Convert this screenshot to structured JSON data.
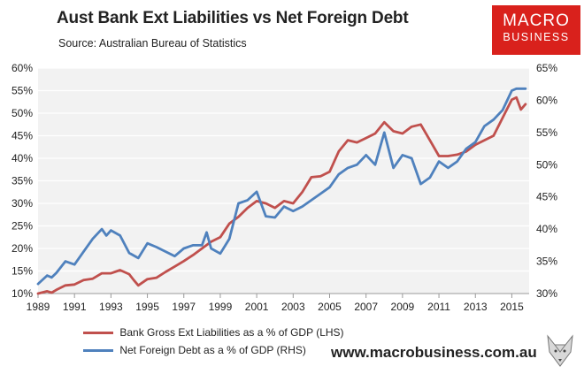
{
  "title": "Aust Bank Ext Liabilities vs Net Foreign Debt",
  "source": "Source:  Australian Bureau of Statistics",
  "logo": {
    "line1": "MACRO",
    "line2": "BUSINESS"
  },
  "website": "www.macrobusiness.com.au",
  "colors": {
    "bank": "#c0504d",
    "nfd": "#4f81bd",
    "plot_bg": "#f2f2f2",
    "logo_red": "#d9211c"
  },
  "chart_data": {
    "type": "line",
    "title": "Aust Bank Ext Liabilities vs Net Foreign Debt",
    "grid": "horizontal",
    "legend_position": "bottom-left",
    "x_ticks": [
      "1989",
      "1991",
      "1993",
      "1995",
      "1997",
      "1999",
      "2001",
      "2003",
      "2005",
      "2007",
      "2009",
      "2011",
      "2013",
      "2015"
    ],
    "left_axis": {
      "range": [
        10,
        60
      ],
      "ticks": [
        "10%",
        "15%",
        "20%",
        "25%",
        "30%",
        "35%",
        "40%",
        "45%",
        "50%",
        "55%",
        "60%"
      ]
    },
    "right_axis": {
      "range": [
        30,
        65
      ],
      "ticks": [
        "30%",
        "35%",
        "40%",
        "45%",
        "50%",
        "55%",
        "60%",
        "65%"
      ]
    },
    "series": [
      {
        "name": "Bank Gross Ext Liabilities as a % of GDP (LHS)",
        "axis": "left",
        "color": "#c0504d",
        "points": [
          [
            1989.0,
            10.0
          ],
          [
            1989.5,
            10.5
          ],
          [
            1989.75,
            10.2
          ],
          [
            1990.0,
            10.8
          ],
          [
            1990.5,
            11.8
          ],
          [
            1991.0,
            12.0
          ],
          [
            1991.5,
            13.0
          ],
          [
            1992.0,
            13.3
          ],
          [
            1992.5,
            14.5
          ],
          [
            1993.0,
            14.5
          ],
          [
            1993.5,
            15.2
          ],
          [
            1994.0,
            14.3
          ],
          [
            1994.25,
            13.0
          ],
          [
            1994.5,
            11.8
          ],
          [
            1995.0,
            13.2
          ],
          [
            1995.5,
            13.5
          ],
          [
            1996.0,
            14.8
          ],
          [
            1996.5,
            16.0
          ],
          [
            1997.0,
            17.2
          ],
          [
            1997.5,
            18.5
          ],
          [
            1998.0,
            20.0
          ],
          [
            1998.5,
            21.5
          ],
          [
            1999.0,
            22.5
          ],
          [
            1999.5,
            25.5
          ],
          [
            2000.0,
            27.0
          ],
          [
            2000.5,
            29.0
          ],
          [
            2001.0,
            30.5
          ],
          [
            2001.5,
            30.0
          ],
          [
            2002.0,
            29.0
          ],
          [
            2002.5,
            30.5
          ],
          [
            2003.0,
            30.0
          ],
          [
            2003.5,
            32.5
          ],
          [
            2004.0,
            35.8
          ],
          [
            2004.5,
            36.0
          ],
          [
            2005.0,
            37.0
          ],
          [
            2005.5,
            41.5
          ],
          [
            2006.0,
            44.0
          ],
          [
            2006.5,
            43.5
          ],
          [
            2007.0,
            44.5
          ],
          [
            2007.5,
            45.5
          ],
          [
            2008.0,
            48.0
          ],
          [
            2008.5,
            46.0
          ],
          [
            2009.0,
            45.5
          ],
          [
            2009.5,
            47.0
          ],
          [
            2010.0,
            47.5
          ],
          [
            2010.5,
            44.0
          ],
          [
            2011.0,
            40.5
          ],
          [
            2011.5,
            40.5
          ],
          [
            2012.0,
            40.8
          ],
          [
            2012.5,
            41.5
          ],
          [
            2013.0,
            43.0
          ],
          [
            2013.5,
            44.0
          ],
          [
            2014.0,
            45.0
          ],
          [
            2014.5,
            49.0
          ],
          [
            2015.0,
            53.0
          ],
          [
            2015.25,
            53.5
          ],
          [
            2015.5,
            50.8
          ],
          [
            2015.75,
            52.0
          ]
        ]
      },
      {
        "name": "Net Foreign Debt as a % of GDP (RHS)",
        "axis": "right",
        "color": "#4f81bd",
        "points": [
          [
            1989.0,
            31.5
          ],
          [
            1989.5,
            32.8
          ],
          [
            1989.75,
            32.5
          ],
          [
            1990.0,
            33.2
          ],
          [
            1990.5,
            35.0
          ],
          [
            1991.0,
            34.5
          ],
          [
            1991.5,
            36.5
          ],
          [
            1992.0,
            38.5
          ],
          [
            1992.5,
            40.0
          ],
          [
            1992.75,
            39.0
          ],
          [
            1993.0,
            39.8
          ],
          [
            1993.5,
            39.0
          ],
          [
            1994.0,
            36.3
          ],
          [
            1994.5,
            35.5
          ],
          [
            1995.0,
            37.8
          ],
          [
            1995.5,
            37.2
          ],
          [
            1996.0,
            36.5
          ],
          [
            1996.5,
            35.8
          ],
          [
            1997.0,
            37.0
          ],
          [
            1997.5,
            37.5
          ],
          [
            1998.0,
            37.5
          ],
          [
            1998.25,
            39.5
          ],
          [
            1998.5,
            37.0
          ],
          [
            1999.0,
            36.2
          ],
          [
            1999.5,
            38.5
          ],
          [
            2000.0,
            44.0
          ],
          [
            2000.5,
            44.5
          ],
          [
            2001.0,
            45.8
          ],
          [
            2001.5,
            42.0
          ],
          [
            2002.0,
            41.8
          ],
          [
            2002.5,
            43.5
          ],
          [
            2003.0,
            42.8
          ],
          [
            2003.5,
            43.5
          ],
          [
            2004.0,
            44.5
          ],
          [
            2004.5,
            45.5
          ],
          [
            2005.0,
            46.5
          ],
          [
            2005.5,
            48.5
          ],
          [
            2006.0,
            49.5
          ],
          [
            2006.5,
            50.0
          ],
          [
            2007.0,
            51.5
          ],
          [
            2007.5,
            50.0
          ],
          [
            2008.0,
            55.0
          ],
          [
            2008.5,
            49.5
          ],
          [
            2009.0,
            51.5
          ],
          [
            2009.5,
            51.0
          ],
          [
            2010.0,
            47.0
          ],
          [
            2010.5,
            48.0
          ],
          [
            2011.0,
            50.5
          ],
          [
            2011.5,
            49.5
          ],
          [
            2012.0,
            50.5
          ],
          [
            2012.5,
            52.5
          ],
          [
            2013.0,
            53.5
          ],
          [
            2013.5,
            56.0
          ],
          [
            2014.0,
            57.0
          ],
          [
            2014.5,
            58.5
          ],
          [
            2015.0,
            61.5
          ],
          [
            2015.25,
            61.8
          ],
          [
            2015.75,
            61.8
          ]
        ]
      }
    ]
  }
}
